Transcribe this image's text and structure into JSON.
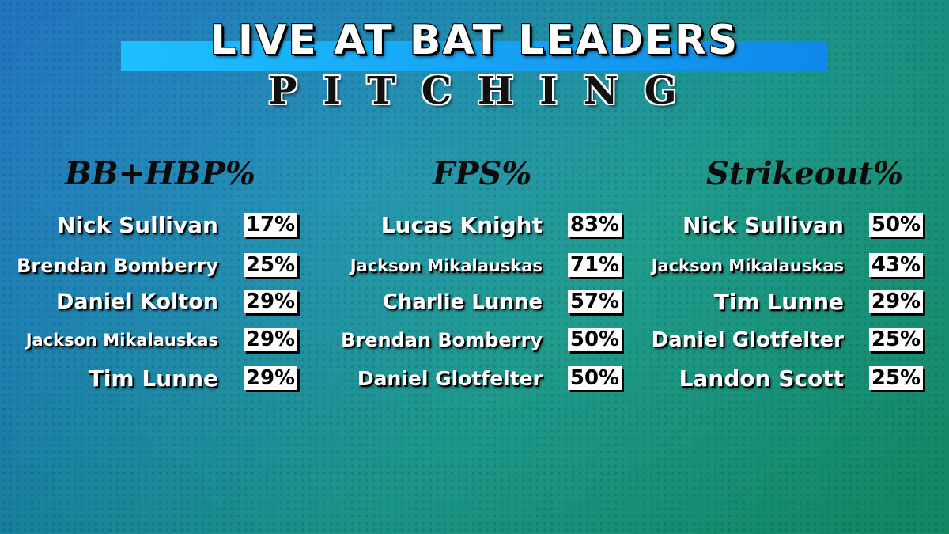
{
  "header": {
    "title": "LIVE AT BAT LEADERS",
    "subtitle": "PITCHING"
  },
  "columns": [
    {
      "title": "BB+HBP%",
      "rows": [
        {
          "name": "Nick Sullivan",
          "value": "17%"
        },
        {
          "name": "Brendan Bomberry",
          "value": "25%"
        },
        {
          "name": "Daniel Kolton",
          "value": "29%"
        },
        {
          "name": "Jackson Mikalauskas",
          "value": "29%"
        },
        {
          "name": "Tim Lunne",
          "value": "29%"
        }
      ]
    },
    {
      "title": "FPS%",
      "rows": [
        {
          "name": "Lucas Knight",
          "value": "83%"
        },
        {
          "name": "Jackson Mikalauskas",
          "value": "71%"
        },
        {
          "name": "Charlie Lunne",
          "value": "57%"
        },
        {
          "name": "Brendan Bomberry",
          "value": "50%"
        },
        {
          "name": "Daniel Glotfelter",
          "value": "50%"
        }
      ]
    },
    {
      "title": "Strikeout%",
      "rows": [
        {
          "name": "Nick Sullivan",
          "value": "50%"
        },
        {
          "name": "Jackson Mikalauskas",
          "value": "43%"
        },
        {
          "name": "Tim Lunne",
          "value": "29%"
        },
        {
          "name": "Daniel Glotfelter",
          "value": "25%"
        },
        {
          "name": "Landon Scott",
          "value": "25%"
        }
      ]
    }
  ],
  "colors": {
    "background_start": "#1f7bd0",
    "background_end": "#159a70",
    "title_bar": "#1ec0ff",
    "value_box": "#ffffff"
  }
}
